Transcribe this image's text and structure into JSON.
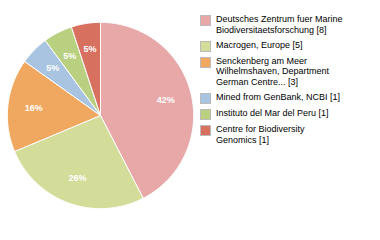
{
  "chart_data": {
    "type": "pie",
    "categories": [
      "Deutsches Zentrum fuer Marine\nBiodiversitaetsforschung [8]",
      "Macrogen, Europe [5]",
      "Senckenberg am Meer\nWilhelmshaven, Department\nGerman Centre... [3]",
      "Mined from GenBank, NCBI [1]",
      "Instituto del Mar del Peru [1]",
      "Centre for Biodiversity\nGenomics [1]"
    ],
    "values": [
      42,
      26,
      16,
      5,
      5,
      5
    ],
    "value_labels": [
      "42%",
      "26%",
      "16%",
      "5%",
      "5%",
      "5%"
    ],
    "colors": [
      "#e8a8a8",
      "#d4dc9a",
      "#f0a860",
      "#a8c4e0",
      "#b8d080",
      "#d87060"
    ],
    "data_labels": true,
    "legend": "right"
  }
}
